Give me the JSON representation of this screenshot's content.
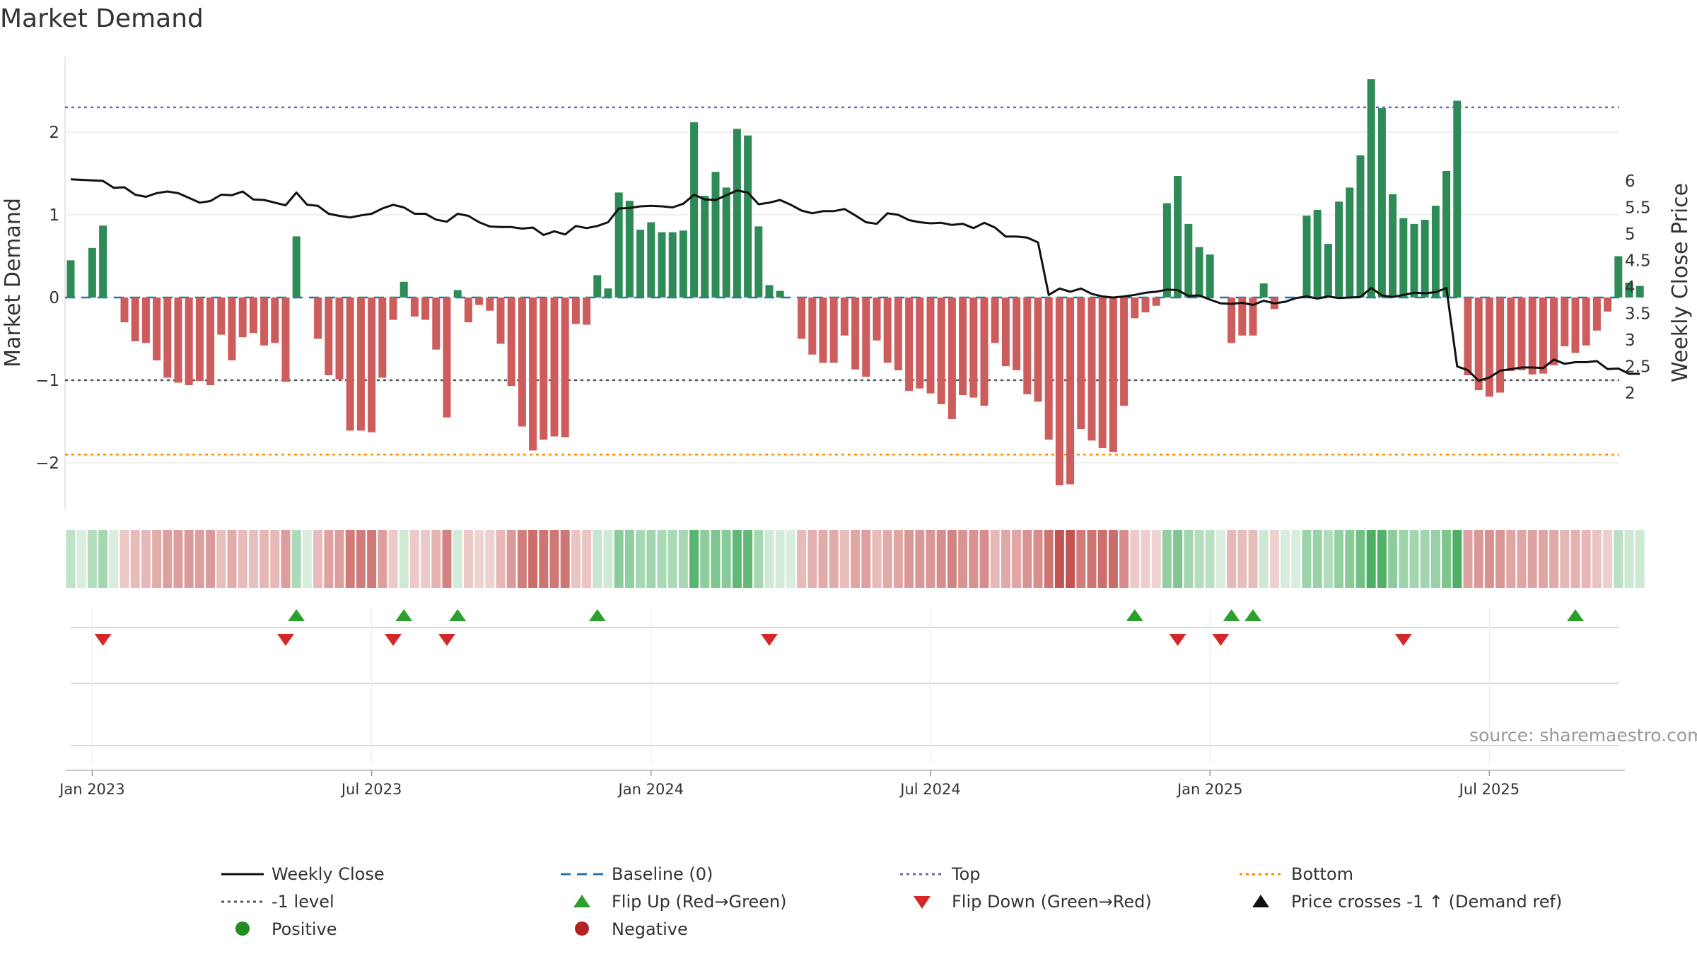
{
  "chart_data": {
    "type": "bar",
    "title": "Market Demand",
    "ylabel": "Market Demand",
    "y2label": "Weekly Close Price",
    "ylim": [
      -2.5,
      2.8
    ],
    "y2lim": [
      2,
      6.2
    ],
    "yticks": [
      {
        "v": 2,
        "label": "2"
      },
      {
        "v": 1,
        "label": "1"
      },
      {
        "v": 0,
        "label": "0"
      },
      {
        "v": -1,
        "label": "−1"
      },
      {
        "v": -2,
        "label": "−2"
      }
    ],
    "y2ticks": [
      {
        "v": 6,
        "label": "6"
      },
      {
        "v": 5.5,
        "label": "5.5"
      },
      {
        "v": 5,
        "label": "5"
      },
      {
        "v": 4.5,
        "label": "4.5"
      },
      {
        "v": 4,
        "label": "4"
      },
      {
        "v": 3.5,
        "label": "3.5"
      },
      {
        "v": 3,
        "label": "3"
      },
      {
        "v": 2.5,
        "label": "2.5"
      },
      {
        "v": 2,
        "label": "2"
      }
    ],
    "xticks": [
      {
        "week": 2,
        "label": "Jan 2023"
      },
      {
        "week": 28,
        "label": "Jul 2023"
      },
      {
        "week": 54,
        "label": "Jan 2024"
      },
      {
        "week": 80,
        "label": "Jul 2024"
      },
      {
        "week": 106,
        "label": "Jan 2025"
      },
      {
        "week": 132,
        "label": "Jul 2025"
      }
    ],
    "reference_lines": {
      "top": 2.3,
      "minus_one": -1,
      "bottom": -1.9,
      "baseline": 0
    },
    "demand": [
      0.45,
      0,
      0.6,
      0.87,
      0,
      -0.3,
      -0.53,
      -0.55,
      -0.76,
      -0.97,
      -1.03,
      -1.06,
      -1.01,
      -1.06,
      -0.45,
      -0.76,
      -0.48,
      -0.43,
      -0.58,
      -0.55,
      -1.02,
      0.74,
      0,
      -0.5,
      -0.94,
      -0.99,
      -1.61,
      -1.61,
      -1.63,
      -0.97,
      -0.27,
      0.19,
      -0.23,
      -0.27,
      -0.63,
      -1.45,
      0.09,
      -0.3,
      -0.09,
      -0.16,
      -0.56,
      -1.07,
      -1.56,
      -1.85,
      -1.72,
      -1.68,
      -1.69,
      -0.32,
      -0.33,
      0.27,
      0.11,
      1.27,
      1.17,
      0.82,
      0.91,
      0.79,
      0.79,
      0.81,
      2.12,
      1.23,
      1.52,
      1.33,
      2.04,
      1.96,
      0.86,
      0.15,
      0.08,
      0,
      -0.5,
      -0.69,
      -0.79,
      -0.79,
      -0.46,
      -0.87,
      -0.96,
      -0.52,
      -0.79,
      -0.88,
      -1.13,
      -1.1,
      -1.16,
      -1.29,
      -1.47,
      -1.18,
      -1.21,
      -1.31,
      -0.55,
      -0.83,
      -0.88,
      -1.17,
      -1.26,
      -1.72,
      -2.27,
      -2.26,
      -1.59,
      -1.73,
      -1.82,
      -1.87,
      -1.31,
      -0.25,
      -0.18,
      -0.1,
      1.14,
      1.47,
      0.89,
      0.61,
      0.52,
      0,
      -0.55,
      -0.46,
      -0.46,
      0.17,
      -0.14,
      0,
      0,
      0.99,
      1.06,
      0.65,
      1.16,
      1.33,
      1.72,
      2.64,
      2.29,
      1.25,
      0.96,
      0.89,
      0.94,
      1.11,
      1.53,
      2.38,
      -0.94,
      -1.12,
      -1.2,
      -1.15,
      -0.89,
      -0.88,
      -0.93,
      -0.92,
      -0.82,
      -0.59,
      -0.67,
      -0.58,
      -0.4,
      -0.17,
      0.5,
      0.18,
      0.14
    ],
    "price": [
      6.03,
      6.02,
      6.01,
      6,
      5.87,
      5.88,
      5.74,
      5.7,
      5.77,
      5.8,
      5.77,
      5.68,
      5.59,
      5.62,
      5.74,
      5.73,
      5.8,
      5.65,
      5.64,
      5.59,
      5.54,
      5.78,
      5.55,
      5.53,
      5.38,
      5.34,
      5.31,
      5.35,
      5.38,
      5.48,
      5.55,
      5.5,
      5.38,
      5.38,
      5.27,
      5.23,
      5.38,
      5.34,
      5.22,
      5.14,
      5.13,
      5.13,
      5.1,
      5.12,
      4.98,
      5.05,
      4.99,
      5.15,
      5.11,
      5.15,
      5.22,
      5.48,
      5.49,
      5.52,
      5.53,
      5.52,
      5.5,
      5.57,
      5.74,
      5.65,
      5.64,
      5.73,
      5.82,
      5.78,
      5.56,
      5.59,
      5.64,
      5.55,
      5.44,
      5.39,
      5.43,
      5.43,
      5.47,
      5.35,
      5.22,
      5.19,
      5.39,
      5.36,
      5.26,
      5.22,
      5.2,
      5.21,
      5.17,
      5.19,
      5.11,
      5.21,
      5.12,
      4.95,
      4.95,
      4.93,
      4.84,
      3.85,
      3.97,
      3.91,
      3.97,
      3.87,
      3.82,
      3.8,
      3.82,
      3.85,
      3.89,
      3.91,
      3.95,
      3.94,
      3.83,
      3.84,
      3.76,
      3.69,
      3.68,
      3.7,
      3.66,
      3.74,
      3.69,
      3.72,
      3.79,
      3.82,
      3.78,
      3.82,
      3.79,
      3.8,
      3.81,
      3.98,
      3.84,
      3.81,
      3.85,
      3.89,
      3.88,
      3.9,
      3.98,
      2.5,
      2.43,
      2.23,
      2.29,
      2.42,
      2.45,
      2.48,
      2.48,
      2.47,
      2.63,
      2.55,
      2.58,
      2.58,
      2.6,
      2.45,
      2.46,
      2.36,
      2.36
    ],
    "flip_up_weeks": [
      21,
      31,
      36,
      49,
      99,
      108,
      110,
      140
    ],
    "flip_down_weeks": [
      3,
      20,
      30,
      35,
      65,
      103,
      107,
      124
    ]
  },
  "legend": {
    "items": [
      {
        "label": "Weekly Close"
      },
      {
        "label": "Baseline (0)"
      },
      {
        "label": "Top"
      },
      {
        "label": "Bottom"
      },
      {
        "label": "-1 level"
      },
      {
        "label": "Flip Up (Red→Green)"
      },
      {
        "label": "Flip Down (Green→Red)"
      },
      {
        "label": "Price crosses -1 ↑ (Demand ref)"
      },
      {
        "label": "Positive"
      },
      {
        "label": "Negative"
      }
    ]
  },
  "colors": {
    "positive_bar": "#2e8b57",
    "negative_bar": "#cd5c5c",
    "price_line": "#111111",
    "baseline": "#1f77b4",
    "top": "#6a6ac0",
    "minus_one": "#555555",
    "bottom": "#ff8c00",
    "flip_up": "#2ca02c",
    "flip_down": "#d62728",
    "positive_dot": "#228b22",
    "negative_dot": "#b22222"
  },
  "source": "source: sharemaestro.com"
}
